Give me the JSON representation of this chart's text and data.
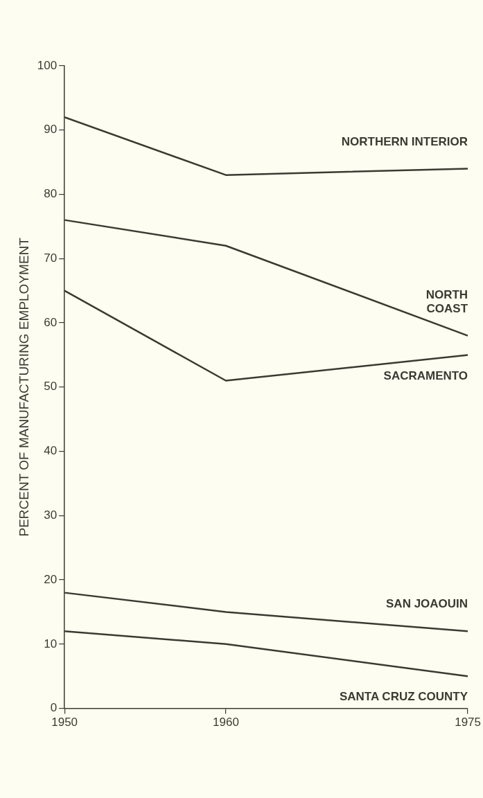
{
  "chart_data": {
    "type": "line",
    "ylabel": "PERCENT OF MANUFACTURING EMPLOYMENT",
    "x": [
      1950,
      1960,
      1975
    ],
    "xlim": [
      1950,
      1975
    ],
    "xticks": [
      1950,
      1960,
      1975
    ],
    "ylim": [
      0,
      100
    ],
    "yticks": [
      0,
      10,
      20,
      30,
      40,
      50,
      60,
      70,
      80,
      90,
      100
    ],
    "grid": false,
    "legend": false,
    "marker": "none",
    "line_style": "solid",
    "series": [
      {
        "name": "NORTHERN INTERIOR",
        "color": "#3a3a32",
        "values": [
          92,
          83,
          84
        ]
      },
      {
        "name": "NORTH COAST",
        "color": "#3a3a32",
        "values": [
          76,
          72,
          58
        ]
      },
      {
        "name": "SACRAMENTO",
        "color": "#3a3a32",
        "values": [
          65,
          51,
          55
        ]
      },
      {
        "name": "SAN JOAOUIN",
        "color": "#3a3a32",
        "values": [
          18,
          15,
          12
        ]
      },
      {
        "name": "SANTA CRUZ COUNTY",
        "color": "#3a3a32",
        "values": [
          12,
          10,
          5
        ]
      }
    ]
  }
}
